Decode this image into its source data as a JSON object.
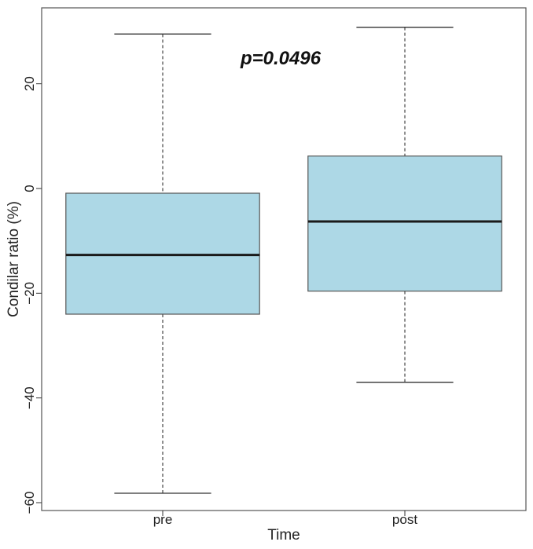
{
  "chart_data": {
    "type": "box",
    "xlabel": "Time",
    "ylabel": "Condilar ratio (%)",
    "categories": [
      "pre",
      "post"
    ],
    "ylim": [
      -61.5,
      34.5
    ],
    "yticks": [
      20,
      0,
      -20,
      -40,
      -60
    ],
    "ytick_labels": [
      "20",
      "0",
      "−20",
      "−40",
      "−60"
    ],
    "boxes": [
      {
        "category": "pre",
        "whisker_low": -58.2,
        "q1": -24.0,
        "median": -12.7,
        "q3": -0.9,
        "whisker_high": 29.5
      },
      {
        "category": "post",
        "whisker_low": -37.0,
        "q1": -19.6,
        "median": -6.3,
        "q3": 6.2,
        "whisker_high": 30.8
      }
    ],
    "annotation": "p=0.0496",
    "box_color": "#add8e6",
    "grid": false
  }
}
